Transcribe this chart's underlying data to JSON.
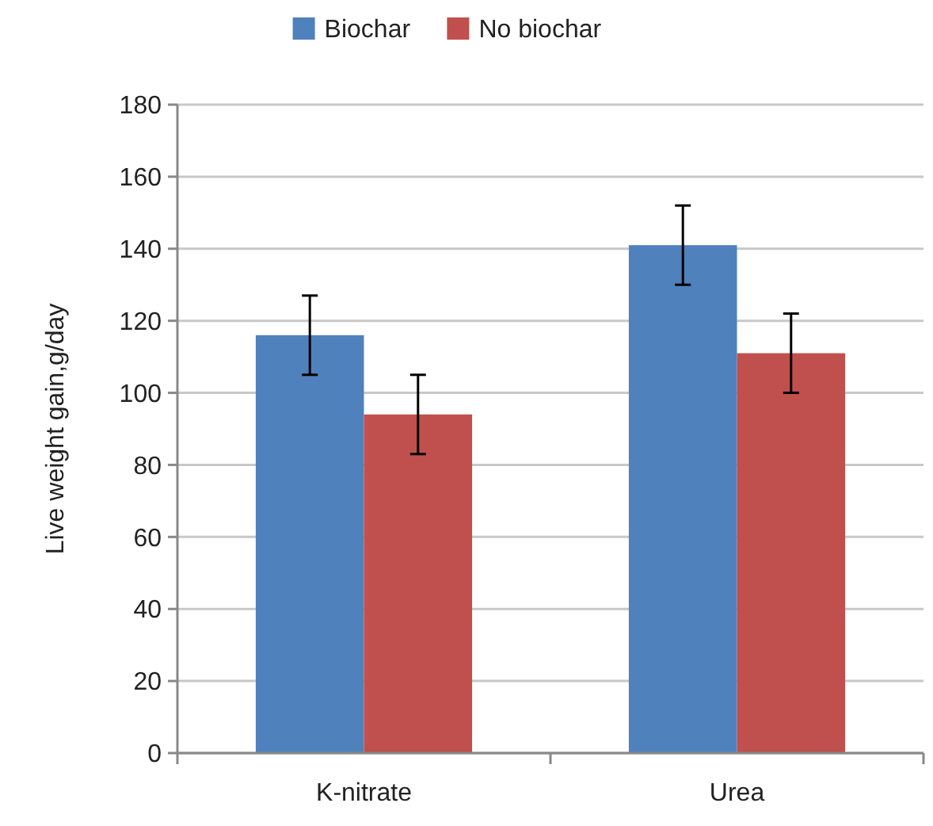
{
  "chart_data": {
    "type": "bar",
    "ylabel": "Live weight gain,g/day",
    "categories": [
      "K-nitrate",
      "Urea"
    ],
    "series": [
      {
        "name": "Biochar",
        "color": "#4f81bd",
        "values": [
          116,
          141
        ],
        "errors": [
          11,
          11
        ]
      },
      {
        "name": "No biochar",
        "color": "#c0504d",
        "values": [
          94,
          111
        ],
        "errors": [
          11,
          11
        ]
      }
    ],
    "ylim": [
      0,
      180
    ],
    "yticks": [
      0,
      20,
      40,
      60,
      80,
      100,
      120,
      140,
      160,
      180
    ],
    "grid": "y",
    "legend": "top"
  }
}
